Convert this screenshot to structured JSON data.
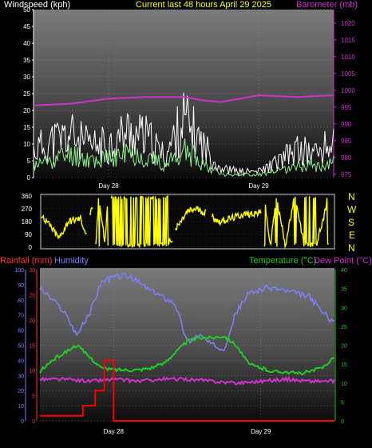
{
  "header": {
    "wind_title": "Windspeed (kph)",
    "center_title": "Current last 48 hours April 29 2025",
    "baro_title": "Barometer (mb)"
  },
  "bottom_header": {
    "rain_title": "Rainfall (mm)",
    "humidity_title": "Humidity",
    "temp_title": "Temperature (°C)",
    "dew_title": "Dew Point (°C)"
  },
  "compass_letters": [
    "N",
    "W",
    "S",
    "E",
    "N"
  ],
  "colors": {
    "wind_gust": "#ffffff",
    "wind_avg": "#90ee90",
    "barometer": "#cc33cc",
    "direction": "#ffff00",
    "rainfall": "#ff0000",
    "humidity": "#8080ff",
    "temperature": "#22cc22",
    "dewpoint": "#cc33cc",
    "wind_title": "#ffffff",
    "center_title": "#ffff00",
    "baro_title": "#cc33cc",
    "rain_title": "#ff3333",
    "humidity_title": "#8080ff",
    "temp_title": "#22cc22",
    "dew_title": "#cc33cc"
  },
  "chart_data": [
    {
      "type": "line",
      "name": "wind-baro",
      "x_ticks": [
        "Day 28",
        "Day 29"
      ],
      "x_hours": [
        0,
        48
      ],
      "x_tick_hours": [
        12,
        36
      ],
      "y_left_ticks": [
        0,
        5,
        10,
        15,
        20,
        25,
        30,
        35,
        40,
        45,
        50
      ],
      "y_left_range": [
        0,
        50
      ],
      "y_right_ticks": [
        975,
        980,
        985,
        990,
        995,
        1000,
        1005,
        1010,
        1015,
        1020
      ],
      "y_right_range": [
        974,
        1024
      ],
      "gust_profile": {
        "x": [
          0,
          3,
          6,
          9,
          12,
          15,
          18,
          21,
          24,
          27,
          30,
          33,
          36,
          39,
          42,
          45,
          48
        ],
        "y": [
          9,
          12,
          14,
          10,
          11,
          15,
          13,
          7,
          19,
          11,
          3,
          2,
          2,
          5,
          9,
          8,
          11
        ]
      },
      "avg_profile": {
        "x": [
          0,
          3,
          6,
          9,
          12,
          15,
          18,
          21,
          24,
          27,
          30,
          33,
          36,
          39,
          42,
          45,
          48
        ],
        "y": [
          4,
          6,
          8,
          6,
          6,
          8,
          7,
          4,
          9,
          5,
          1,
          1,
          1,
          2,
          4,
          4,
          5
        ]
      },
      "barometer": {
        "x": [
          0,
          6,
          12,
          18,
          24,
          27,
          30,
          36,
          42,
          48
        ],
        "y": [
          995.5,
          996,
          997.5,
          998,
          998,
          997,
          996.5,
          998.5,
          998,
          998.5
        ]
      }
    },
    {
      "type": "scatter",
      "name": "wind-direction",
      "y_ticks": [
        0,
        90,
        180,
        270,
        360
      ],
      "y_range": [
        0,
        360
      ],
      "segments": [
        {
          "x": [
            0,
            1.5,
            3,
            4.5,
            6.5,
            7.5
          ],
          "y": [
            230,
            150,
            60,
            180,
            200,
            80
          ]
        },
        {
          "x": [
            8,
            8.5
          ],
          "y": [
            240,
            260
          ]
        },
        {
          "x": [
            9,
            9.5,
            10.5,
            11
          ],
          "y": [
            20,
            340,
            30,
            350
          ]
        },
        {
          "x": [
            11.5,
            14,
            16,
            18,
            20,
            21.5
          ],
          "y": [
            5,
            10,
            15,
            20,
            30,
            50
          ]
        },
        {
          "x": [
            22,
            24,
            25.5,
            27
          ],
          "y": [
            120,
            250,
            270,
            240
          ]
        },
        {
          "x": [
            28,
            29,
            31,
            33,
            35,
            36
          ],
          "y": [
            220,
            180,
            200,
            230,
            240,
            240
          ]
        },
        {
          "x": [
            36.5,
            37.5,
            38.5,
            40,
            41.5,
            43,
            45,
            47
          ],
          "y": [
            350,
            10,
            340,
            20,
            350,
            30,
            10,
            340
          ]
        }
      ]
    },
    {
      "type": "line",
      "name": "temp-hum-rain",
      "x_ticks": [
        "Day 28",
        "Day 29"
      ],
      "x_hours": [
        0,
        48
      ],
      "x_tick_hours": [
        12,
        36
      ],
      "y_humidity_ticks": [
        0,
        10,
        20,
        30,
        40,
        50,
        60,
        70,
        80,
        90,
        100
      ],
      "y_humidity_range": [
        0,
        100
      ],
      "y_rain_ticks": [
        0,
        5,
        10,
        15,
        20,
        25,
        30
      ],
      "y_rain_range": [
        0,
        30
      ],
      "y_temp_ticks": [
        0,
        5,
        10,
        15,
        20,
        25,
        30,
        35,
        40
      ],
      "y_temp_range": [
        0,
        40
      ],
      "humidity": {
        "x": [
          0,
          2,
          4,
          6,
          8,
          10,
          12,
          14,
          16,
          18,
          20,
          22,
          24,
          26,
          28,
          30,
          32,
          34,
          36,
          38,
          40,
          42,
          44,
          46,
          48
        ],
        "y": [
          88,
          80,
          72,
          57,
          70,
          92,
          95,
          96,
          92,
          86,
          82,
          78,
          52,
          57,
          50,
          48,
          72,
          84,
          87,
          88,
          86,
          84,
          82,
          72,
          65
        ]
      },
      "temperature": {
        "x": [
          0,
          2,
          4,
          6,
          8,
          10,
          12,
          14,
          16,
          18,
          20,
          22,
          24,
          26,
          28,
          30,
          32,
          34,
          36,
          38,
          40,
          42,
          44,
          46,
          48
        ],
        "y": [
          13,
          16,
          18,
          20,
          17,
          14,
          13.5,
          13.5,
          13.5,
          14,
          15,
          18,
          21,
          22,
          22,
          22.5,
          20,
          15,
          14,
          13,
          13,
          12.5,
          13,
          14,
          17
        ]
      },
      "dewpoint": {
        "x": [
          0,
          4,
          8,
          12,
          16,
          20,
          24,
          28,
          32,
          36,
          40,
          44,
          48
        ],
        "y": [
          11,
          11,
          10.5,
          11,
          10.5,
          11,
          11,
          10.5,
          10,
          10.5,
          11,
          10.5,
          10.5
        ]
      },
      "rainfall": {
        "x": [
          0,
          6,
          7,
          8,
          9,
          10,
          10.5,
          12,
          48
        ],
        "y": [
          1,
          1,
          3,
          3,
          6,
          6,
          12,
          0,
          0
        ]
      }
    }
  ]
}
